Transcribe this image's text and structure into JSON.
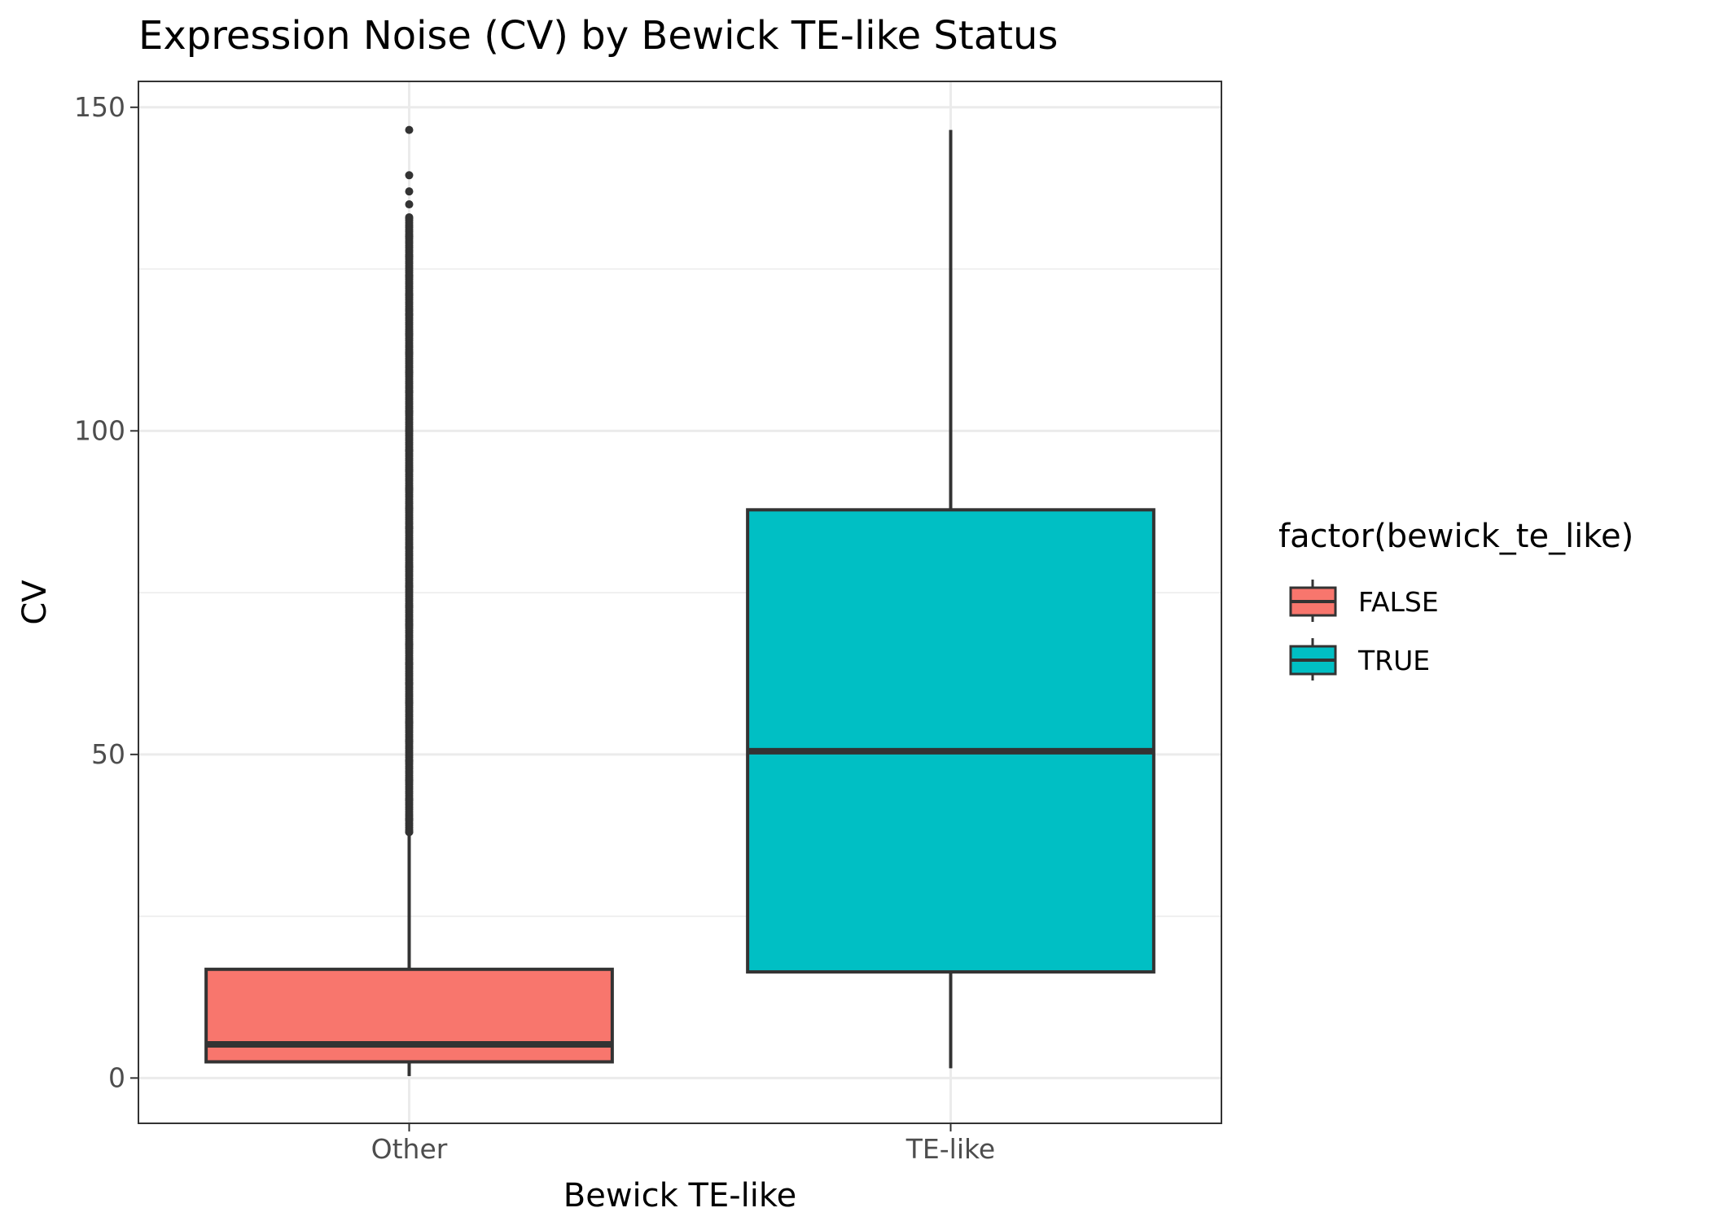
{
  "chart_data": {
    "type": "box",
    "title": "Expression Noise (CV) by Bewick TE-like Status",
    "xlabel": "Bewick TE-like",
    "ylabel": "CV",
    "ylim": [
      -7,
      154
    ],
    "yticks": [
      0,
      50,
      100,
      150
    ],
    "grid": true,
    "legend_position": "right",
    "legend_title": "factor(bewick_te_like)",
    "legend": [
      {
        "label": "FALSE",
        "color": "#F8766D"
      },
      {
        "label": "TRUE",
        "color": "#00BFC4"
      }
    ],
    "categories": [
      "Other",
      "TE-like"
    ],
    "boxes": [
      {
        "category": "Other",
        "group": "FALSE",
        "color": "#F8766D",
        "whisker_low": 0.3,
        "q1": 2.5,
        "median": 5.2,
        "q3": 16.8,
        "whisker_high": 37.8,
        "outliers": [
          38,
          40,
          43,
          46,
          49,
          52,
          55,
          58,
          61,
          64,
          67,
          70,
          73,
          76,
          79,
          82,
          85,
          88,
          91,
          94,
          97,
          100,
          103,
          106,
          109,
          112,
          115,
          118,
          121,
          124,
          127,
          130,
          133,
          135,
          137,
          139.5,
          146.5
        ]
      },
      {
        "category": "TE-like",
        "group": "TRUE",
        "color": "#00BFC4",
        "whisker_low": 1.5,
        "q1": 16.4,
        "median": 50.5,
        "q3": 87.8,
        "whisker_high": 146.5,
        "outliers": []
      }
    ]
  }
}
